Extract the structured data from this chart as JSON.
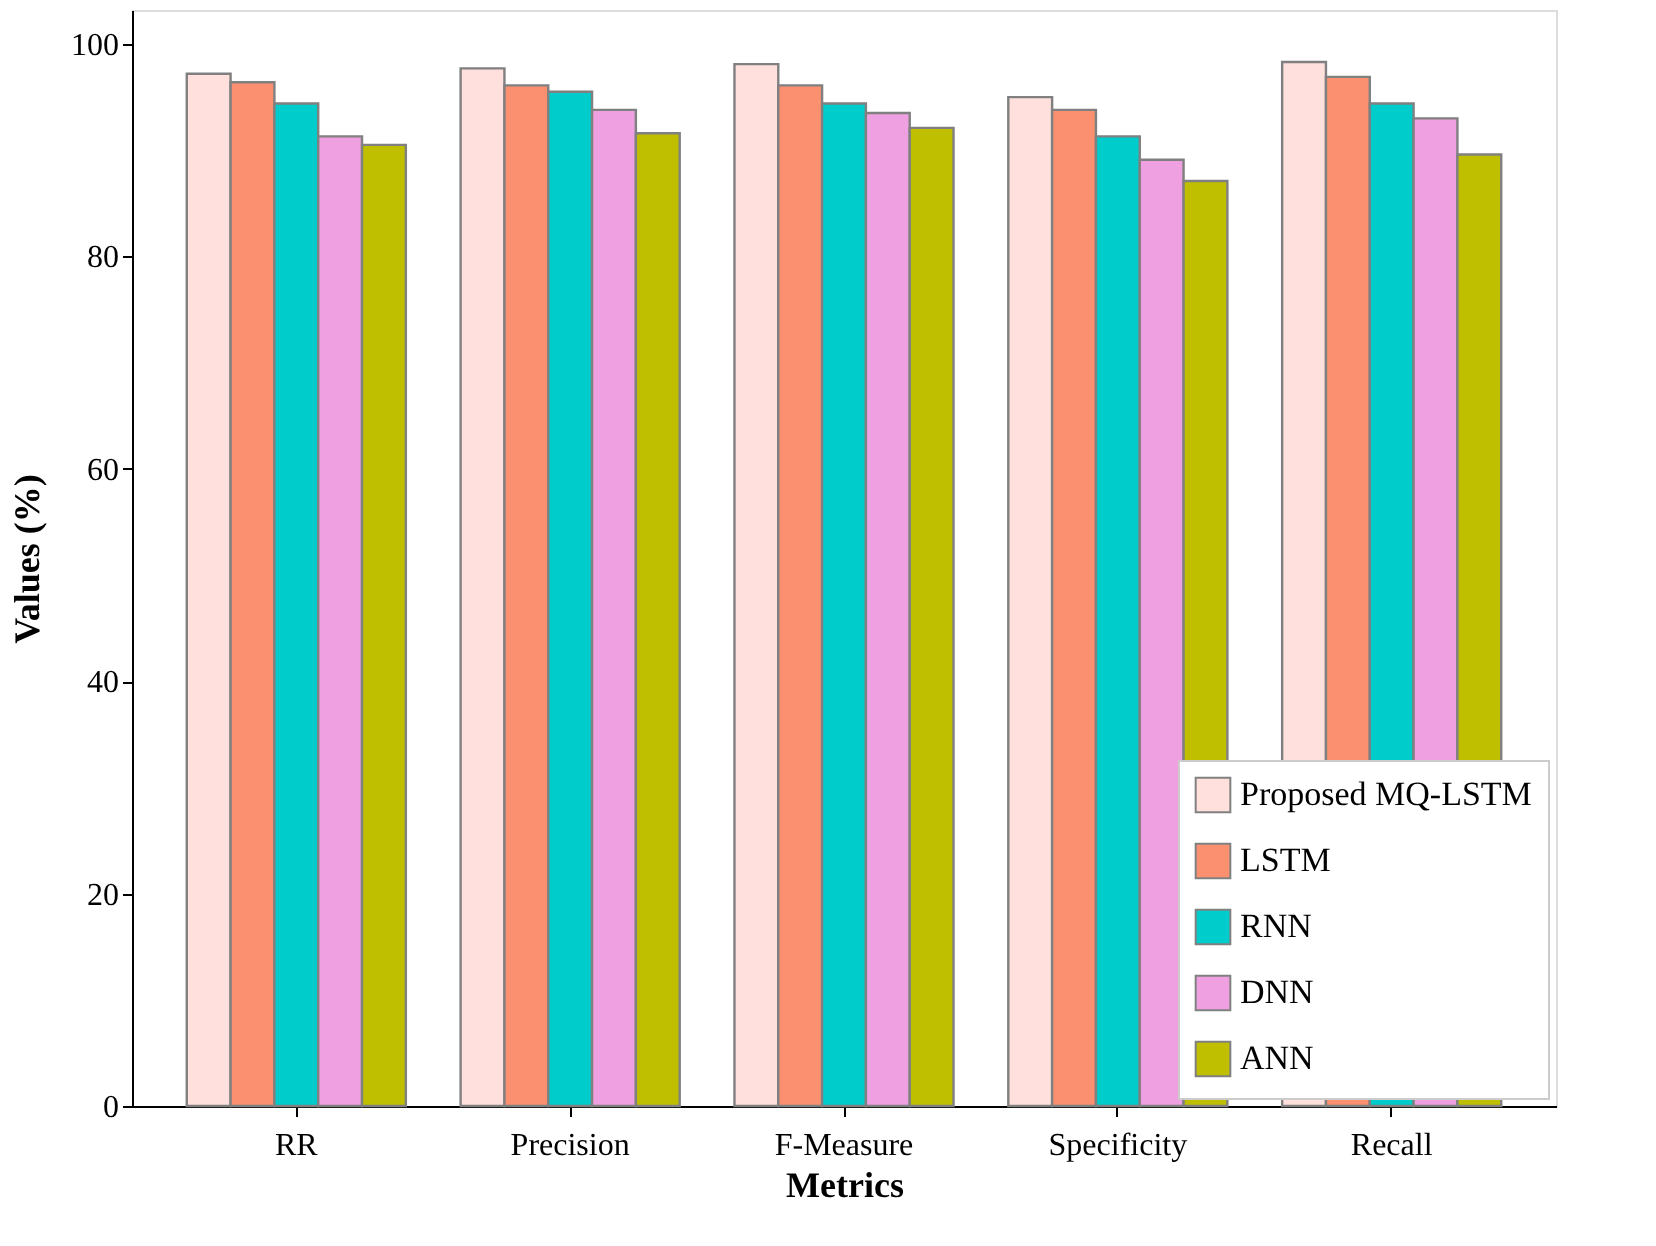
{
  "chart_data": {
    "type": "bar",
    "xlabel": "Metrics",
    "ylabel": "Values (%)",
    "categories": [
      "RR",
      "Precision",
      "F-Measure",
      "Specificity",
      "Recall"
    ],
    "series": [
      {
        "name": "Proposed MQ-LSTM",
        "color": "#ffe0dc",
        "values": [
          97.2,
          97.7,
          98.1,
          95.0,
          98.3
        ]
      },
      {
        "name": "LSTM",
        "color": "#fa9070",
        "values": [
          96.4,
          96.1,
          96.1,
          93.8,
          96.9
        ]
      },
      {
        "name": "RNN",
        "color": "#00cccc",
        "values": [
          94.4,
          95.5,
          94.4,
          91.3,
          94.4
        ]
      },
      {
        "name": "DNN",
        "color": "#eea0e0",
        "values": [
          91.3,
          93.8,
          93.5,
          89.1,
          93.0
        ]
      },
      {
        "name": "ANN",
        "color": "#bfbf00",
        "values": [
          90.5,
          91.6,
          92.1,
          87.1,
          89.6
        ]
      }
    ],
    "ylim": [
      0,
      103.2
    ],
    "yticks": [
      0,
      20,
      40,
      60,
      80,
      100
    ],
    "grid": false,
    "legend": "bottom right"
  }
}
